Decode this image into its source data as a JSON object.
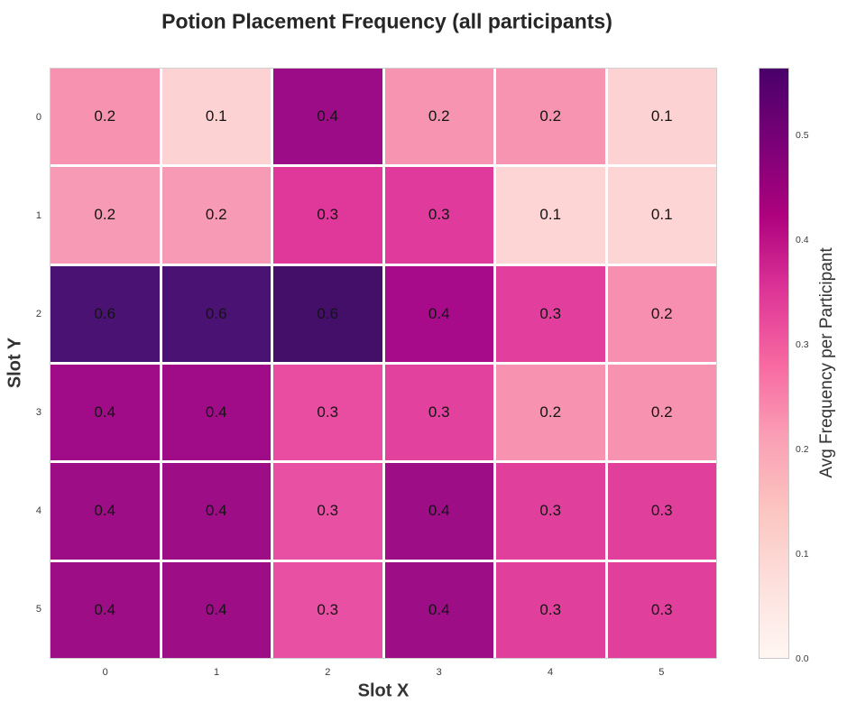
{
  "title": "Potion Placement Frequency (all participants)",
  "chart_data": {
    "type": "heatmap",
    "title": "Potion Placement Frequency (all participants)",
    "xlabel": "Slot X",
    "ylabel": "Slot Y",
    "x_ticks": [
      "0",
      "1",
      "2",
      "3",
      "4",
      "5"
    ],
    "y_ticks": [
      "0",
      "1",
      "2",
      "3",
      "4",
      "5"
    ],
    "values": [
      [
        0.2,
        0.1,
        0.4,
        0.2,
        0.2,
        0.1
      ],
      [
        0.2,
        0.2,
        0.3,
        0.3,
        0.1,
        0.1
      ],
      [
        0.6,
        0.6,
        0.6,
        0.4,
        0.3,
        0.2
      ],
      [
        0.4,
        0.4,
        0.3,
        0.3,
        0.2,
        0.2
      ],
      [
        0.4,
        0.4,
        0.3,
        0.4,
        0.3,
        0.3
      ],
      [
        0.4,
        0.4,
        0.3,
        0.4,
        0.3,
        0.3
      ]
    ],
    "cell_labels": [
      [
        "0.2",
        "0.1",
        "0.4",
        "0.2",
        "0.2",
        "0.1"
      ],
      [
        "0.2",
        "0.2",
        "0.3",
        "0.3",
        "0.1",
        "0.1"
      ],
      [
        "0.6",
        "0.6",
        "0.6",
        "0.4",
        "0.3",
        "0.2"
      ],
      [
        "0.4",
        "0.4",
        "0.3",
        "0.3",
        "0.2",
        "0.2"
      ],
      [
        "0.4",
        "0.4",
        "0.3",
        "0.4",
        "0.3",
        "0.3"
      ],
      [
        "0.4",
        "0.4",
        "0.3",
        "0.4",
        "0.3",
        "0.3"
      ]
    ],
    "cell_colors": [
      [
        "#f792b1",
        "#fcd3d2",
        "#9c0c86",
        "#f794b2",
        "#f794b2",
        "#fcd3d2"
      ],
      [
        "#f79ab5",
        "#f79ab5",
        "#e0379b",
        "#e03a9c",
        "#fcd5d4",
        "#fcd5d4"
      ],
      [
        "#4a1272",
        "#4a1272",
        "#440f69",
        "#a70b8a",
        "#e23e9d",
        "#f78fb0"
      ],
      [
        "#a00c88",
        "#a00c88",
        "#e84da2",
        "#e2429e",
        "#f792b1",
        "#f792b1"
      ],
      [
        "#9d0d86",
        "#9d0d86",
        "#e850a4",
        "#9d0d86",
        "#e0409c",
        "#e0409c"
      ],
      [
        "#9d0d86",
        "#9d0d86",
        "#e850a4",
        "#9d0d86",
        "#e0409c",
        "#e0409c"
      ]
    ],
    "annotation_color": "#141414",
    "grid_line_color": "#ffffff",
    "colorbar": {
      "label": "Avg Frequency per Participant",
      "ticks": [
        "0.0",
        "0.1",
        "0.2",
        "0.3",
        "0.4",
        "0.5"
      ],
      "range": [
        0.0,
        0.565
      ],
      "gradient": [
        {
          "pos": "0%",
          "color": "#fff7f3"
        },
        {
          "pos": "12.5%",
          "color": "#fde0dd"
        },
        {
          "pos": "25%",
          "color": "#fcc5c0"
        },
        {
          "pos": "37.5%",
          "color": "#fa9fb5"
        },
        {
          "pos": "50%",
          "color": "#f768a1"
        },
        {
          "pos": "62.5%",
          "color": "#dd3497"
        },
        {
          "pos": "75%",
          "color": "#ae017e"
        },
        {
          "pos": "87.5%",
          "color": "#7a0177"
        },
        {
          "pos": "100%",
          "color": "#49006a"
        }
      ]
    }
  }
}
